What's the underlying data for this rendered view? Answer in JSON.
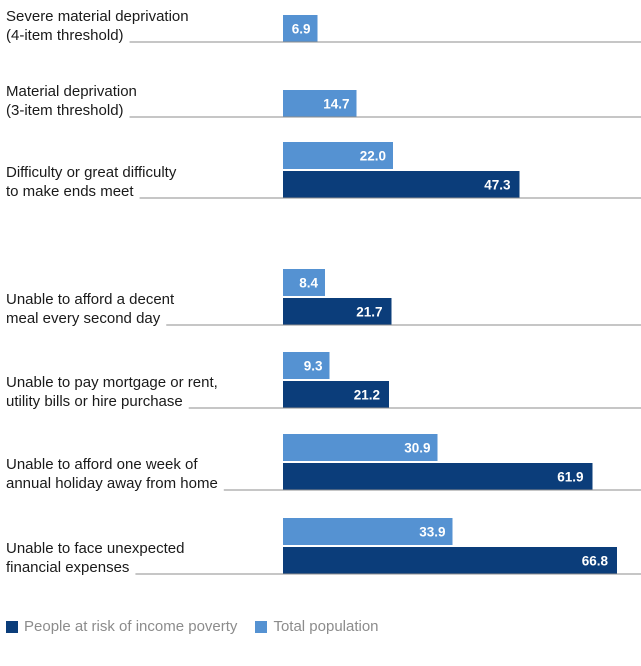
{
  "chart_data": {
    "type": "bar",
    "orientation": "horizontal",
    "categories": [
      [
        "Severe material deprivation",
        "(4-item threshold)"
      ],
      [
        "Material deprivation",
        "(3-item threshold)"
      ],
      [
        "Difficulty or great difficulty",
        "to make ends meet"
      ],
      [
        "Unable to afford a decent",
        "meal every second day"
      ],
      [
        "Unable to pay mortgage or rent,",
        "utility bills or hire purchase"
      ],
      [
        "Unable to afford one week of",
        "annual holiday away from home"
      ],
      [
        "Unable to face unexpected",
        "financial expenses"
      ]
    ],
    "series": [
      {
        "name": "People at risk of income poverty",
        "color": "#0b3d7a",
        "values": [
          null,
          null,
          47.3,
          21.7,
          21.2,
          61.9,
          66.8
        ],
        "labels": [
          "",
          "",
          "47.3",
          "21.7",
          "21.2",
          "61.9",
          "66.8"
        ]
      },
      {
        "name": "Total population",
        "color": "#5592d2",
        "values": [
          6.9,
          14.7,
          22.0,
          8.4,
          9.3,
          30.9,
          33.9
        ],
        "labels": [
          "6.9",
          "14.7",
          "22.0",
          "8.4",
          "9.3",
          "30.9",
          "33.9"
        ]
      }
    ],
    "xlim": [
      0,
      70
    ],
    "legend_position": "bottom-left"
  }
}
